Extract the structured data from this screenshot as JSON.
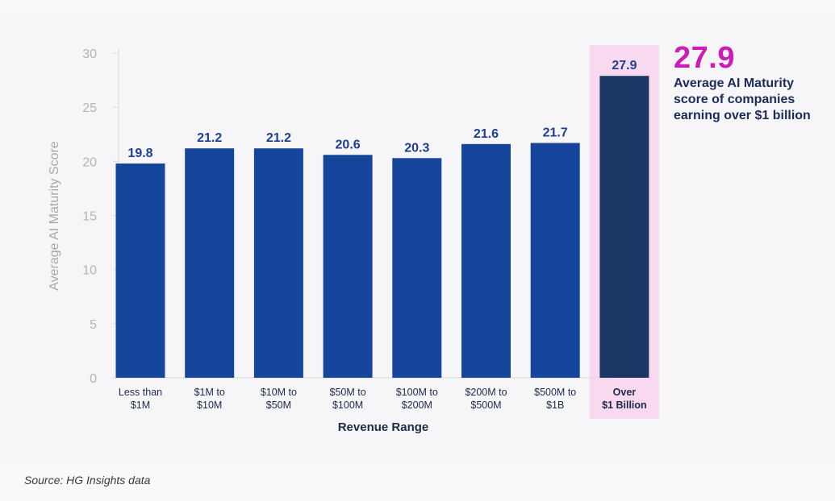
{
  "chart_data": {
    "type": "bar",
    "ylabel": "Average AI Maturity Score",
    "xlabel": "Revenue Range",
    "ylim": [
      0,
      30
    ],
    "yticks": [
      0,
      5,
      10,
      15,
      20,
      25,
      30
    ],
    "categories": [
      [
        "Less than",
        "$1M"
      ],
      [
        "$1M to",
        "$10M"
      ],
      [
        "$10M to",
        "$50M"
      ],
      [
        "$50M to",
        "$100M"
      ],
      [
        "$100M to",
        "$200M"
      ],
      [
        "$200M to",
        "$500M"
      ],
      [
        "$500M to",
        "$1B"
      ],
      [
        "Over",
        "$1 Billion"
      ]
    ],
    "values": [
      19.8,
      21.2,
      21.2,
      20.6,
      20.3,
      21.6,
      21.7,
      27.9
    ],
    "value_labels": [
      "19.8",
      "21.2",
      "21.2",
      "20.6",
      "20.3",
      "21.6",
      "21.7",
      "27.9"
    ],
    "highlighted_index": 7
  },
  "callout": {
    "value": "27.9",
    "text": "Average AI Maturity score of companies earning over $1 billion"
  },
  "source": "Source: HG Insights data",
  "colors": {
    "bar": "#16469b",
    "bar_highlight": "#1c3665",
    "highlight_band": "#f8d9f0",
    "callout_value": "#cc1db6",
    "axis": "#d9d9d9"
  }
}
